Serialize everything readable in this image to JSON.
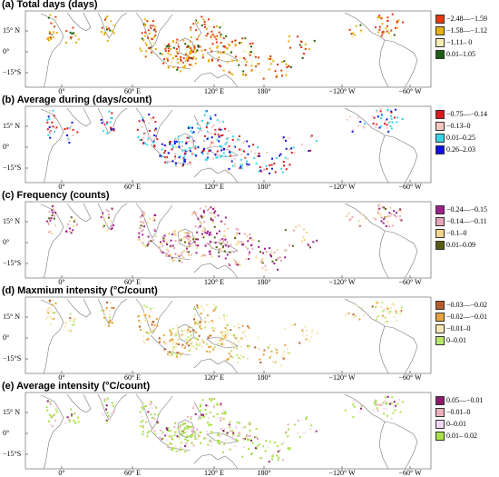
{
  "chart_data": [
    {
      "type": "map",
      "title": "(a) Total days (days)",
      "lat_labels": [
        "15° N",
        "0°",
        "−15°S"
      ],
      "lon_labels": [
        "0°",
        "60° E",
        "120° E",
        "180°",
        "−120° W",
        "−60° W"
      ],
      "legend": [
        {
          "label": "−2.48—−1.59",
          "color": "#e3390f"
        },
        {
          "label": "−1.58—−1.12",
          "color": "#e6b10c"
        },
        {
          "label": "−1.11– 0",
          "color": "#f7edb4"
        },
        {
          "label": "0.01–1.05",
          "color": "#1c5f12"
        }
      ]
    },
    {
      "type": "map",
      "title": "(b) Average during (days/count)",
      "lat_labels": [
        "15° N",
        "0°",
        "−15°S"
      ],
      "lon_labels": [
        "0°",
        "60° E",
        "120° E",
        "180°",
        "−120° W",
        "−60° W"
      ],
      "legend": [
        {
          "label": "−0.75—−0.14",
          "color": "#d7191c"
        },
        {
          "label": "−0.13–0",
          "color": "#f4c6c0"
        },
        {
          "label": "0.01–0.25",
          "color": "#35d6e8"
        },
        {
          "label": "0.26–2.03",
          "color": "#1010e0"
        }
      ]
    },
    {
      "type": "map",
      "title": "(c) Frequency (counts)",
      "lat_labels": [
        "15° N",
        "0°",
        "−15°S"
      ],
      "lon_labels": [
        "0°",
        "60° E",
        "120° E",
        "180°",
        "−120° W",
        "−60° W"
      ],
      "legend": [
        {
          "label": "−0.24—−0.15",
          "color": "#9e1f8c"
        },
        {
          "label": "−0.14—−0.11",
          "color": "#e6a6b8"
        },
        {
          "label": "−0.1–0",
          "color": "#f2d48a"
        },
        {
          "label": "0.01–0.09",
          "color": "#5c5a12"
        }
      ]
    },
    {
      "type": "map",
      "title": "(d) Maxmium intensity (°C/count)",
      "lat_labels": [
        "15° N",
        "0°",
        "−15°S"
      ],
      "lon_labels": [
        "0°",
        "60° E",
        "120° E",
        "180°",
        "−120° W",
        "−60° W"
      ],
      "legend": [
        {
          "label": "−0.03—−0.02",
          "color": "#b85a2a"
        },
        {
          "label": "−0.02—−0.01",
          "color": "#e8a23a"
        },
        {
          "label": "−0.01–0",
          "color": "#f6e7b8"
        },
        {
          "label": "0–0.01",
          "color": "#b6e86a"
        }
      ]
    },
    {
      "type": "map",
      "title": "(e) Average intensity (°C/count)",
      "lat_labels": [
        "15° N",
        "0°",
        "−15°S"
      ],
      "lon_labels": [
        "0°",
        "60° E",
        "120° E",
        "180°",
        "−120° W",
        "−60° W"
      ],
      "legend": [
        {
          "label": "0.05—−0.01",
          "color": "#8e1a6e"
        },
        {
          "label": "−0.01–0",
          "color": "#eeb0b8"
        },
        {
          "label": "0–0.01",
          "color": "#f3d7f0"
        },
        {
          "label": "0.01– 0.02",
          "color": "#a9e04a"
        }
      ]
    }
  ]
}
